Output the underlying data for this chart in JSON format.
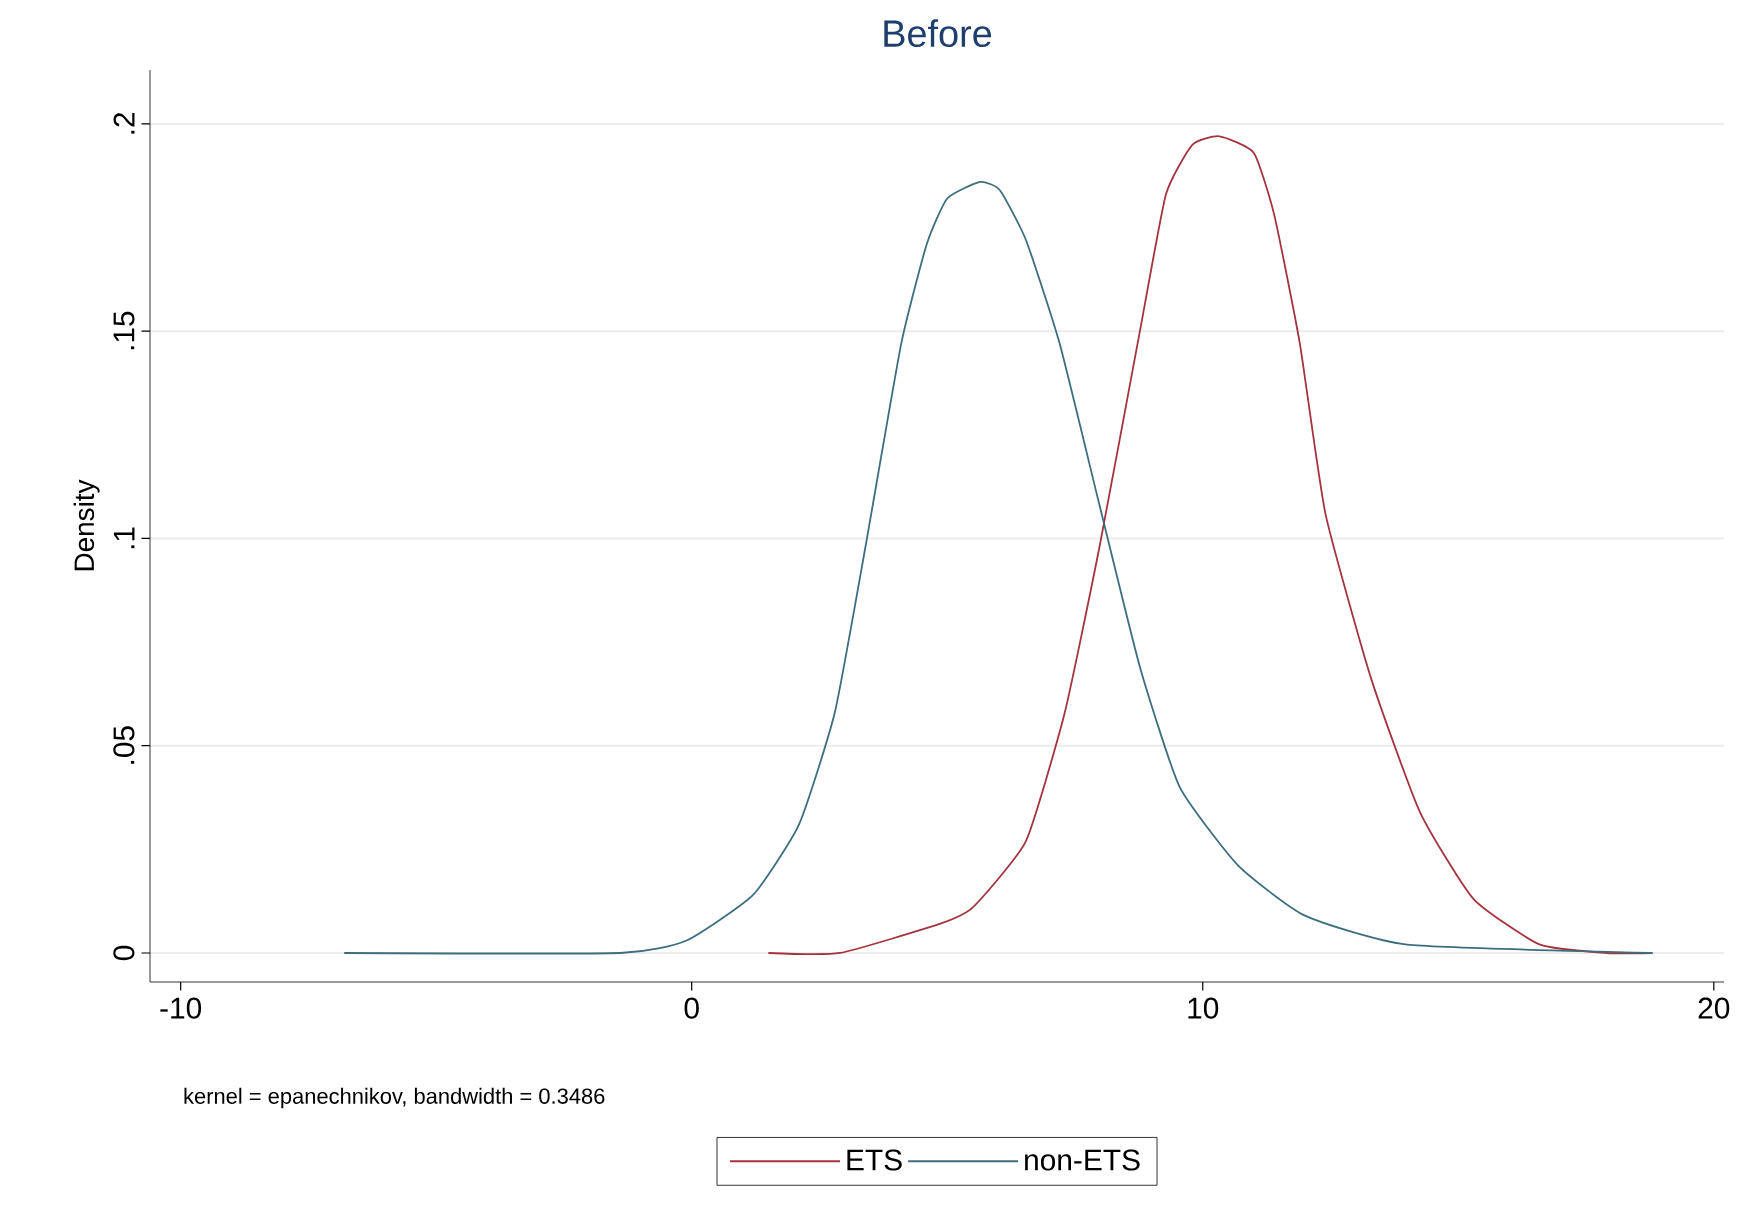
{
  "chart_data": {
    "type": "line",
    "title": "Before",
    "ylabel": "Density",
    "annotations": [
      "kernel = epanechnikov, bandwidth = 0.3486"
    ],
    "series": [
      {
        "name": "ETS",
        "color": "#a3343f",
        "x": [
          1.5,
          2.9,
          4.85,
          5.5,
          6.54,
          7.3,
          7.98,
          8.77,
          9.28,
          9.8,
          10.33,
          11.0,
          11.4,
          11.9,
          12.4,
          13.3,
          14.25,
          15.3,
          16.6,
          17.9,
          18.8
        ],
        "values": [
          0,
          0,
          0.007,
          0.011,
          0.027,
          0.058,
          0.098,
          0.15,
          0.183,
          0.195,
          0.197,
          0.193,
          0.178,
          0.147,
          0.106,
          0.066,
          0.034,
          0.013,
          0.002,
          0,
          0
        ]
      },
      {
        "name": "non-ETS",
        "color": "#3d6e7e",
        "x": [
          -6.8,
          -1.4,
          -0.1,
          1.2,
          2.1,
          2.8,
          3.4,
          4.1,
          4.6,
          5.0,
          5.64,
          6.03,
          6.54,
          7.2,
          7.98,
          8.77,
          9.55,
          10.7,
          12.0,
          14.0,
          18.8
        ],
        "values": [
          0,
          0,
          0.003,
          0.014,
          0.031,
          0.058,
          0.098,
          0.147,
          0.171,
          0.182,
          0.186,
          0.184,
          0.172,
          0.147,
          0.108,
          0.069,
          0.04,
          0.021,
          0.009,
          0.002,
          0
        ]
      }
    ],
    "xlim": [
      -10.6,
      20.2
    ],
    "xticks": [
      -10,
      0,
      10,
      20
    ],
    "ylim": [
      -0.007,
      0.213
    ],
    "yticks": [
      0,
      {
        "value": 0.05,
        "label": ".05"
      },
      {
        "value": 0.1,
        "label": ".1"
      },
      {
        "value": 0.15,
        "label": ".15"
      },
      {
        "value": 0.2,
        "label": ".2"
      }
    ],
    "grid": "y",
    "legend": "bottom"
  }
}
